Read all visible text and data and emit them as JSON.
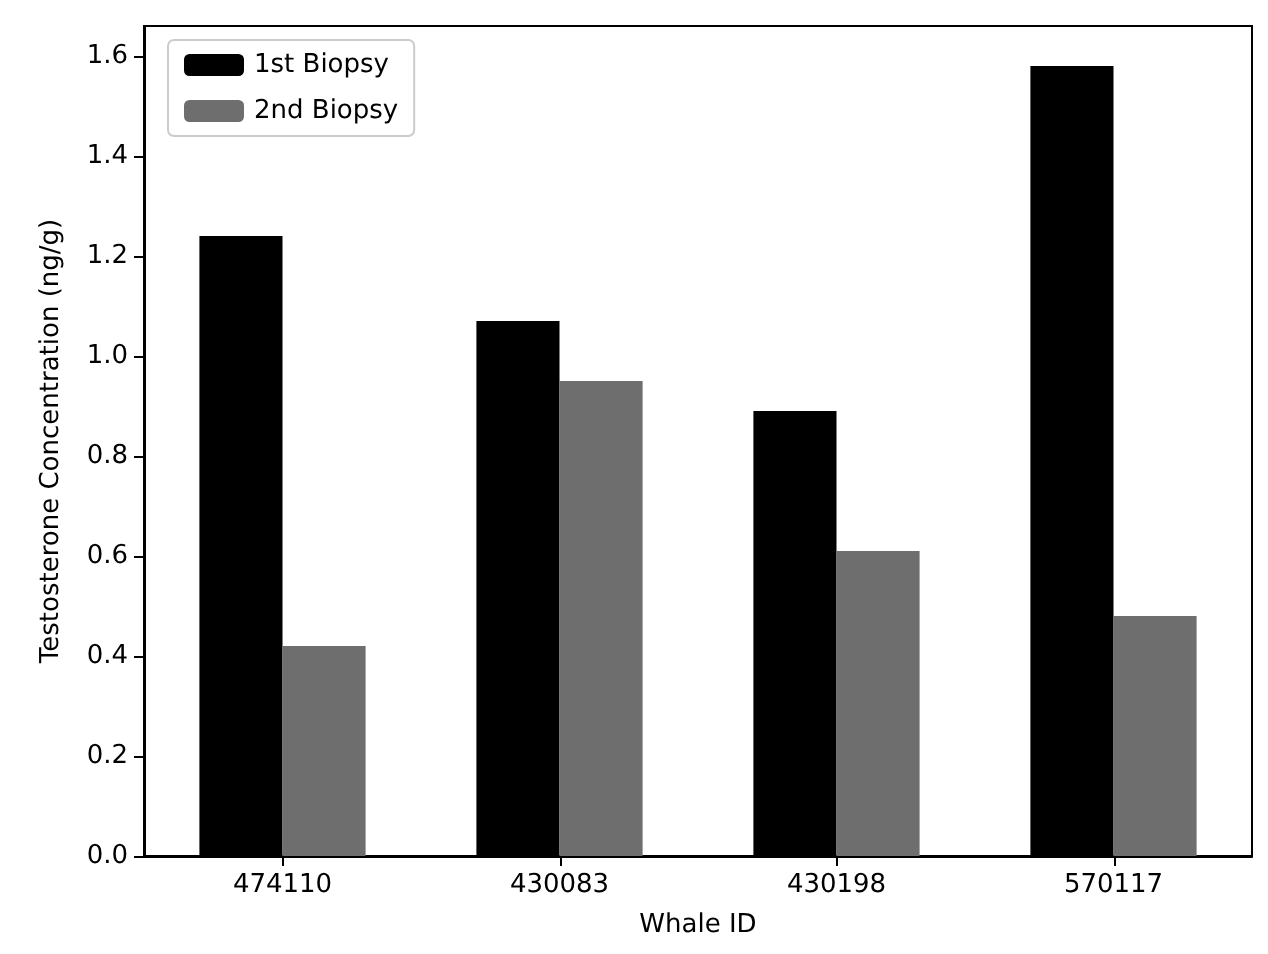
{
  "chart_data": {
    "type": "bar",
    "xlabel": "Whale ID",
    "ylabel": "Testosterone Concentration (ng/g)",
    "categories": [
      "474110",
      "430083",
      "430198",
      "570117"
    ],
    "series": [
      {
        "name": "1st Biopsy",
        "color": "#000000",
        "values": [
          1.24,
          1.07,
          0.89,
          1.58
        ]
      },
      {
        "name": "2nd Biopsy",
        "color": "#6e6e6e",
        "values": [
          0.42,
          0.95,
          0.61,
          0.48
        ]
      }
    ],
    "ylim": [
      0,
      1.66
    ],
    "yticks": [
      {
        "value": 0,
        "label": "0.0"
      },
      0.2,
      0.4,
      0.6,
      0.8,
      {
        "value": 1,
        "label": "1.0"
      },
      1.2,
      1.4,
      1.6
    ],
    "grid": false,
    "legend": "top left"
  }
}
